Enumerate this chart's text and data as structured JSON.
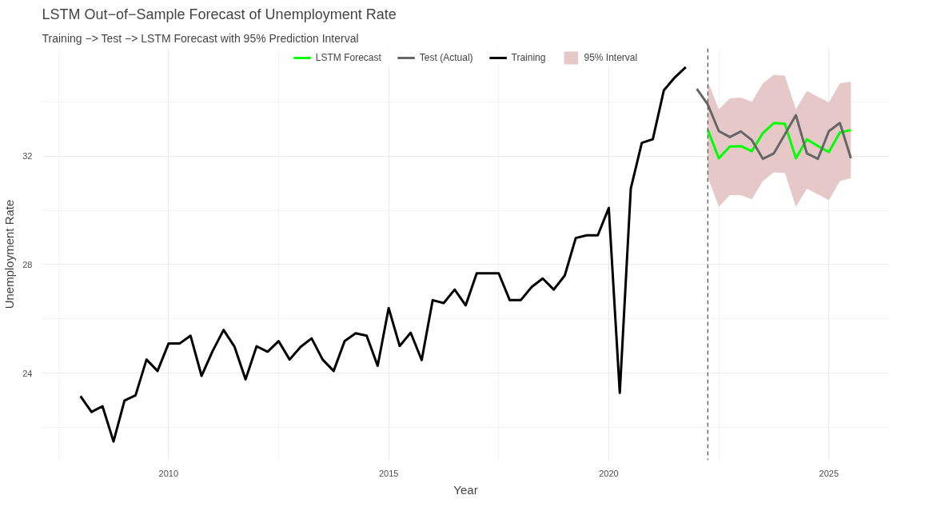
{
  "chart_data": {
    "type": "line",
    "title": "LSTM Out−of−Sample Forecast of Unemployment Rate",
    "subtitle": "Training −> Test −> LSTM Forecast with 95% Prediction Interval",
    "xlabel": "Year",
    "ylabel": "Unemployment Rate",
    "xlim": [
      2007.125,
      2026.375
    ],
    "xticks": [
      2010,
      2015,
      2020,
      2025
    ],
    "ylim": [
      20.79,
      35.97
    ],
    "yticks": [
      24,
      28,
      32
    ],
    "grid": true,
    "legend": "top",
    "series": [
      {
        "name": "LSTM Forecast",
        "color": "#00ff00",
        "x": [
          2022.25,
          2022.5,
          2022.75,
          2023.0,
          2023.25,
          2023.5,
          2023.75,
          2024.0,
          2024.25,
          2024.5,
          2024.75,
          2025.0,
          2025.25,
          2025.5
        ],
        "values": [
          32.96,
          31.92,
          32.35,
          32.37,
          32.18,
          32.85,
          33.22,
          33.19,
          31.92,
          32.62,
          32.37,
          32.15,
          32.87,
          32.96
        ],
        "lower": [
          31.22,
          30.13,
          30.56,
          30.56,
          30.41,
          31.08,
          31.4,
          31.38,
          30.13,
          30.8,
          30.59,
          30.38,
          31.08,
          31.19
        ],
        "upper": [
          34.76,
          33.72,
          34.13,
          34.16,
          34.0,
          34.68,
          35.0,
          34.97,
          33.72,
          34.4,
          34.19,
          33.98,
          34.68,
          34.74
        ]
      },
      {
        "name": "Test (Actual)",
        "color": "#666666",
        "x": [
          2022.0,
          2022.25,
          2022.5,
          2022.75,
          2023.0,
          2023.25,
          2023.5,
          2023.75,
          2024.0,
          2024.25,
          2024.5,
          2024.75,
          2025.0,
          2025.25,
          2025.5
        ],
        "values": [
          34.48,
          33.9,
          32.92,
          32.7,
          32.91,
          32.59,
          31.9,
          32.1,
          32.8,
          33.51,
          32.1,
          31.9,
          32.92,
          33.22,
          31.92
        ]
      },
      {
        "name": "Training",
        "color": "#000000",
        "x": [
          2008.0,
          2008.25,
          2008.5,
          2008.75,
          2009.0,
          2009.25,
          2009.5,
          2009.75,
          2010.0,
          2010.25,
          2010.5,
          2010.75,
          2011.0,
          2011.25,
          2011.5,
          2011.75,
          2012.0,
          2012.25,
          2012.5,
          2012.75,
          2013.0,
          2013.25,
          2013.5,
          2013.75,
          2014.0,
          2014.25,
          2014.5,
          2014.75,
          2015.0,
          2015.25,
          2015.5,
          2015.75,
          2016.0,
          2016.25,
          2016.5,
          2016.75,
          2017.0,
          2017.25,
          2017.5,
          2017.75,
          2018.0,
          2018.25,
          2018.5,
          2018.75,
          2019.0,
          2019.25,
          2019.5,
          2019.75,
          2020.0,
          2020.25,
          2020.5,
          2020.75,
          2021.0,
          2021.25,
          2021.5,
          2021.75
        ],
        "values": [
          23.15,
          22.57,
          22.78,
          21.48,
          22.99,
          23.18,
          24.5,
          24.08,
          25.09,
          25.09,
          25.38,
          23.9,
          24.81,
          25.59,
          24.97,
          23.77,
          24.99,
          24.79,
          25.18,
          24.5,
          24.97,
          25.28,
          24.5,
          24.08,
          25.18,
          25.47,
          25.38,
          24.27,
          26.4,
          25.0,
          25.49,
          24.48,
          26.69,
          26.58,
          27.08,
          26.5,
          27.68,
          27.68,
          27.68,
          26.69,
          26.69,
          27.18,
          27.49,
          27.08,
          27.6,
          28.98,
          29.08,
          29.08,
          30.09,
          23.27,
          30.8,
          32.49,
          32.62,
          34.42,
          34.9,
          35.28
        ]
      },
      {
        "name": "95% Interval",
        "type": "area",
        "color": "#e6c8c8"
      }
    ],
    "ref_lines": [
      {
        "axis": "x",
        "value": 2022.25,
        "color": "#555555",
        "line_style": "dashed"
      }
    ]
  }
}
